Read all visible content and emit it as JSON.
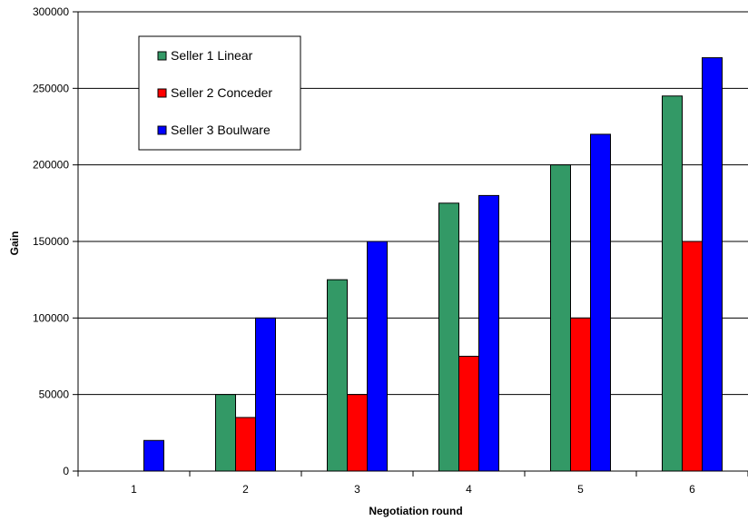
{
  "chart_data": {
    "type": "bar",
    "title": "",
    "xlabel": "Negotiation round",
    "ylabel": "Gain",
    "categories": [
      "1",
      "2",
      "3",
      "4",
      "5",
      "6"
    ],
    "ylim": [
      0,
      300000
    ],
    "yticks": [
      "0",
      "50000",
      "100000",
      "150000",
      "200000",
      "250000",
      "300000"
    ],
    "grid": "horizontal",
    "legend_position": "top-left",
    "series": [
      {
        "name": "Seller 1 Linear",
        "color": "#339966",
        "values": [
          0,
          50000,
          125000,
          175000,
          200000,
          245000
        ]
      },
      {
        "name": "Seller 2 Conceder",
        "color": "#ff0000",
        "values": [
          0,
          35000,
          50000,
          75000,
          100000,
          150000
        ]
      },
      {
        "name": "Seller 3 Boulware",
        "color": "#0000ff",
        "values": [
          20000,
          100000,
          150000,
          180000,
          220000,
          270000
        ]
      }
    ]
  }
}
